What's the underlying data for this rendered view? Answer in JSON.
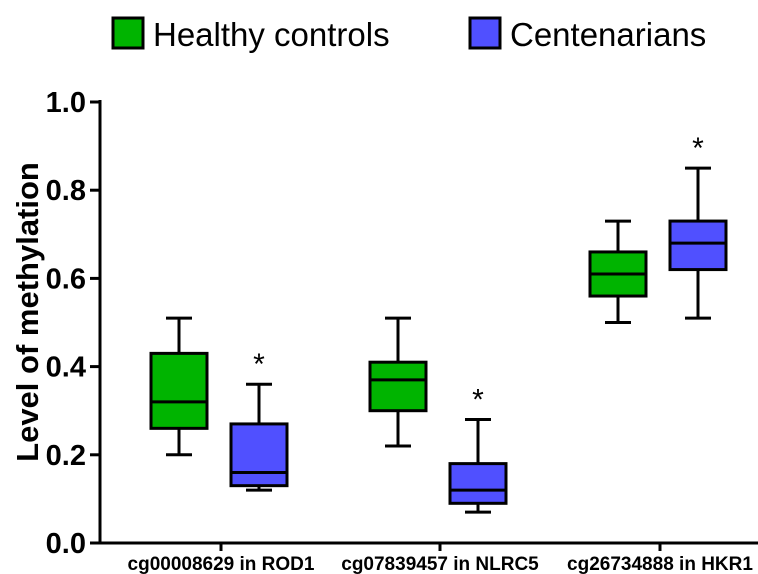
{
  "chart_data": {
    "type": "boxplot",
    "ylabel": "Level of methylation",
    "ylim": [
      0.0,
      1.0
    ],
    "y_ticks": [
      0.0,
      0.2,
      0.4,
      0.6,
      0.8,
      1.0
    ],
    "y_tick_labels": [
      "0.0",
      "0.2",
      "0.4",
      "0.6",
      "0.8",
      "1.0"
    ],
    "categories": [
      "cg00008629 in ROD1",
      "cg07839457 in NLRC5",
      "cg26734888 in HKR1"
    ],
    "legend_position": "top",
    "series": [
      {
        "name": "Healthy controls",
        "color": "#00b400",
        "boxes": [
          {
            "min": 0.2,
            "q1": 0.26,
            "median": 0.32,
            "q3": 0.43,
            "max": 0.51,
            "annotation": ""
          },
          {
            "min": 0.22,
            "q1": 0.3,
            "median": 0.37,
            "q3": 0.41,
            "max": 0.51,
            "annotation": ""
          },
          {
            "min": 0.5,
            "q1": 0.56,
            "median": 0.61,
            "q3": 0.66,
            "max": 0.73,
            "annotation": ""
          }
        ]
      },
      {
        "name": "Centenarians",
        "color": "#5050ff",
        "boxes": [
          {
            "min": 0.12,
            "q1": 0.13,
            "median": 0.16,
            "q3": 0.27,
            "max": 0.36,
            "annotation": "*"
          },
          {
            "min": 0.07,
            "q1": 0.09,
            "median": 0.12,
            "q3": 0.18,
            "max": 0.28,
            "annotation": "*"
          },
          {
            "min": 0.51,
            "q1": 0.62,
            "median": 0.68,
            "q3": 0.73,
            "max": 0.85,
            "annotation": "*"
          }
        ]
      }
    ]
  }
}
